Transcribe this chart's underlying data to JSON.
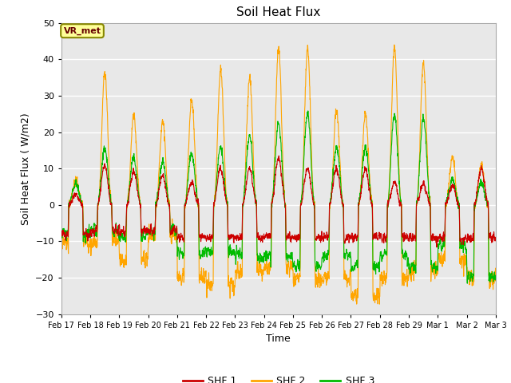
{
  "title": "Soil Heat Flux",
  "xlabel": "Time",
  "ylabel": "Soil Heat Flux ( W/m2)",
  "ylim": [
    -30,
    50
  ],
  "yticks": [
    -30,
    -20,
    -10,
    0,
    10,
    20,
    30,
    40,
    50
  ],
  "bg_color": "#e8e8e8",
  "grid_color": "#ffffff",
  "line_colors": {
    "SHF 1": "#cc0000",
    "SHF 2": "#ffa500",
    "SHF 3": "#00bb00"
  },
  "line_widths": {
    "SHF 1": 0.8,
    "SHF 2": 0.8,
    "SHF 3": 0.8
  },
  "annotation_text": "VR_met",
  "annotation_bg": "#ffff99",
  "annotation_border": "#888800",
  "xtick_labels": [
    "Feb 17",
    "Feb 18",
    "Feb 19",
    "Feb 20",
    "Feb 21",
    "Feb 22",
    "Feb 23",
    "Feb 24",
    "Feb 25",
    "Feb 26",
    "Feb 27",
    "Feb 28",
    "Feb 29",
    "Mar 1",
    "Mar 2",
    "Mar 3"
  ],
  "n_days": 15,
  "pts_per_day": 144,
  "day_amps_shf2": [
    7,
    37,
    25,
    23,
    29,
    37,
    35,
    43,
    43,
    26,
    25,
    43,
    39,
    13,
    11
  ],
  "day_night_shf2": [
    -10,
    -10,
    -15,
    -8,
    -20,
    -22,
    -18,
    -17,
    -20,
    -20,
    -25,
    -20,
    -18,
    -15,
    -20
  ],
  "day_amps_shf1": [
    3,
    11,
    9,
    8,
    6,
    10,
    10,
    13,
    10,
    10,
    10,
    6,
    6,
    5,
    10
  ],
  "day_night_shf1": [
    -8,
    -7,
    -7,
    -7,
    -9,
    -9,
    -9,
    -9,
    -9,
    -9,
    -9,
    -9,
    -9,
    -9,
    -9
  ],
  "day_amps_shf3": [
    6,
    16,
    13,
    12,
    14,
    16,
    19,
    22,
    25,
    16,
    16,
    25,
    24,
    7,
    6
  ],
  "day_night_shf3": [
    -8,
    -7,
    -9,
    -7,
    -13,
    -13,
    -14,
    -14,
    -17,
    -14,
    -17,
    -14,
    -17,
    -11,
    -20
  ]
}
